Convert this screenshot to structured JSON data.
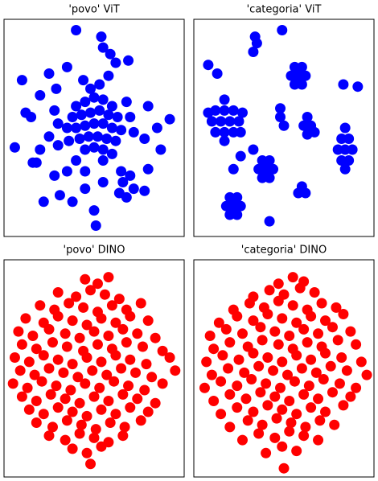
{
  "chart_data": [
    {
      "type": "scatter",
      "title": "'povo' ViT",
      "color": "#0000ff",
      "xlim": [
        0,
        100
      ],
      "ylim": [
        0,
        100
      ],
      "x": [
        40,
        45,
        50,
        55,
        60,
        38,
        43,
        48,
        53,
        58,
        63,
        35,
        40,
        45,
        50,
        55,
        60,
        65,
        42,
        47,
        52,
        57,
        62,
        45,
        50,
        55,
        48,
        53,
        44,
        58,
        30,
        28,
        70,
        72,
        68,
        36,
        30,
        25,
        20,
        18,
        40,
        35,
        45,
        55,
        60,
        65,
        66,
        64,
        68,
        70,
        72,
        40,
        54,
        55,
        59,
        10,
        12,
        6,
        92,
        87,
        51,
        38,
        22,
        16,
        78,
        80,
        29,
        31,
        69,
        20,
        25,
        15,
        80,
        78,
        45,
        55,
        85,
        35,
        62,
        50,
        28
      ],
      "values": [
        60,
        62,
        64,
        63,
        60,
        55,
        56,
        57,
        58,
        56,
        55,
        50,
        50,
        51,
        52,
        52,
        50,
        49,
        45,
        46,
        46,
        45,
        44,
        40,
        41,
        40,
        68,
        70,
        72,
        74,
        52,
        58,
        55,
        48,
        62,
        44,
        42,
        46,
        40,
        34,
        35,
        30,
        30,
        35,
        38,
        30,
        25,
        20,
        18,
        28,
        22,
        95,
        92,
        87,
        84,
        72,
        57,
        41,
        54,
        40,
        5,
        16,
        16,
        34,
        21,
        31,
        68,
        19,
        81,
        65,
        75,
        55,
        60,
        45,
        22,
        25,
        50,
        78,
        80,
        12,
        28
      ]
    },
    {
      "type": "scatter",
      "title": "'categoria' ViT",
      "color": "#0000ff",
      "xlim": [
        0,
        100
      ],
      "ylim": [
        0,
        100
      ],
      "x": [
        10,
        15,
        20,
        25,
        12,
        17,
        22,
        12,
        17,
        22,
        17,
        17,
        27,
        8,
        26,
        54,
        58,
        62,
        56,
        60,
        56,
        60,
        80,
        84,
        88,
        82,
        86,
        82,
        86,
        84,
        84,
        36,
        40,
        44,
        38,
        42,
        38,
        42,
        61,
        65,
        63,
        63,
        67,
        48,
        48,
        50,
        18,
        22,
        26,
        20,
        24,
        20,
        24,
        58,
        62,
        60,
        33,
        35,
        34,
        49,
        8,
        83,
        91,
        42,
        22,
        13,
        26,
        33
      ],
      "values": [
        53,
        53,
        53,
        53,
        58,
        58,
        58,
        48,
        48,
        48,
        63,
        44,
        57,
        57,
        48,
        74,
        74,
        74,
        78,
        78,
        70,
        70,
        40,
        40,
        40,
        45,
        45,
        35,
        35,
        50,
        31,
        31,
        31,
        31,
        35,
        35,
        27,
        27,
        51,
        51,
        55,
        47,
        48,
        55,
        59,
        51,
        14,
        14,
        14,
        18,
        18,
        10,
        10,
        20,
        20,
        23,
        85,
        89,
        92,
        95,
        79,
        70,
        69,
        7,
        31,
        75,
        37,
        40
      ]
    },
    {
      "type": "scatter",
      "title": "'povo' DINO",
      "color": "#ff0000",
      "xlim": [
        0,
        100
      ],
      "ylim": [
        0,
        100
      ],
      "x": [
        45,
        52,
        58,
        30,
        40,
        48,
        56,
        64,
        20,
        28,
        36,
        44,
        52,
        60,
        68,
        76,
        12,
        22,
        30,
        38,
        46,
        54,
        62,
        70,
        80,
        8,
        16,
        25,
        34,
        42,
        50,
        58,
        66,
        74,
        84,
        10,
        18,
        27,
        35,
        44,
        52,
        60,
        68,
        77,
        88,
        6,
        14,
        22,
        30,
        38,
        46,
        54,
        62,
        70,
        79,
        92,
        9,
        17,
        25,
        33,
        41,
        49,
        57,
        65,
        73,
        82,
        95,
        5,
        13,
        21,
        29,
        37,
        45,
        53,
        61,
        69,
        78,
        88,
        10,
        18,
        26,
        34,
        42,
        50,
        58,
        66,
        74,
        84,
        14,
        22,
        30,
        38,
        46,
        54,
        62,
        70,
        80,
        18,
        27,
        35,
        43,
        51,
        59,
        67,
        76,
        25,
        34,
        42,
        50,
        58,
        66,
        38,
        46,
        54,
        48
      ],
      "values": [
        91,
        89,
        92,
        85,
        83,
        86,
        84,
        82,
        79,
        77,
        80,
        78,
        76,
        79,
        77,
        80,
        73,
        71,
        74,
        72,
        70,
        73,
        71,
        74,
        72,
        67,
        65,
        68,
        66,
        64,
        67,
        65,
        68,
        66,
        64,
        61,
        59,
        62,
        60,
        58,
        61,
        59,
        62,
        60,
        58,
        55,
        53,
        56,
        54,
        52,
        55,
        53,
        56,
        54,
        52,
        55,
        49,
        47,
        50,
        48,
        46,
        49,
        47,
        50,
        48,
        46,
        49,
        43,
        41,
        44,
        42,
        40,
        43,
        41,
        44,
        42,
        40,
        43,
        37,
        35,
        38,
        36,
        34,
        37,
        35,
        38,
        36,
        34,
        31,
        29,
        32,
        30,
        28,
        31,
        29,
        32,
        30,
        25,
        23,
        26,
        24,
        22,
        25,
        23,
        26,
        19,
        17,
        20,
        18,
        16,
        19,
        13,
        11,
        14,
        6
      ]
    },
    {
      "type": "scatter",
      "title": "'categoria' DINO",
      "color": "#ff0000",
      "xlim": [
        0,
        100
      ],
      "ylim": [
        0,
        100
      ],
      "x": [
        47,
        55,
        61,
        33,
        42,
        50,
        59,
        67,
        22,
        31,
        39,
        47,
        55,
        63,
        71,
        79,
        14,
        24,
        33,
        41,
        49,
        57,
        65,
        73,
        83,
        9,
        18,
        27,
        37,
        45,
        53,
        61,
        69,
        77,
        87,
        11,
        20,
        30,
        38,
        47,
        55,
        63,
        71,
        80,
        90,
        7,
        16,
        25,
        33,
        41,
        49,
        57,
        65,
        73,
        82,
        93,
        10,
        19,
        28,
        36,
        44,
        52,
        60,
        68,
        76,
        85,
        96,
        6,
        15,
        24,
        32,
        40,
        48,
        56,
        64,
        72,
        81,
        90,
        11,
        20,
        29,
        37,
        45,
        53,
        61,
        69,
        77,
        87,
        15,
        24,
        33,
        41,
        49,
        57,
        65,
        73,
        83,
        20,
        30,
        38,
        46,
        54,
        62,
        70,
        78,
        27,
        36,
        45,
        53,
        61,
        69,
        40,
        49,
        57,
        50
      ],
      "values": [
        89,
        92,
        90,
        83,
        86,
        84,
        87,
        85,
        77,
        80,
        78,
        81,
        79,
        77,
        80,
        78,
        71,
        74,
        72,
        75,
        73,
        71,
        74,
        72,
        75,
        65,
        68,
        66,
        69,
        67,
        65,
        68,
        66,
        69,
        67,
        59,
        62,
        60,
        63,
        61,
        59,
        62,
        60,
        63,
        61,
        53,
        56,
        54,
        57,
        55,
        53,
        56,
        54,
        57,
        55,
        53,
        47,
        50,
        48,
        51,
        49,
        47,
        50,
        48,
        51,
        49,
        47,
        41,
        44,
        42,
        45,
        43,
        41,
        44,
        42,
        45,
        43,
        41,
        35,
        38,
        36,
        39,
        37,
        35,
        38,
        36,
        39,
        37,
        29,
        32,
        30,
        33,
        31,
        29,
        32,
        30,
        33,
        23,
        26,
        24,
        27,
        25,
        23,
        26,
        24,
        17,
        20,
        18,
        21,
        19,
        17,
        11,
        14,
        12,
        4
      ]
    }
  ]
}
